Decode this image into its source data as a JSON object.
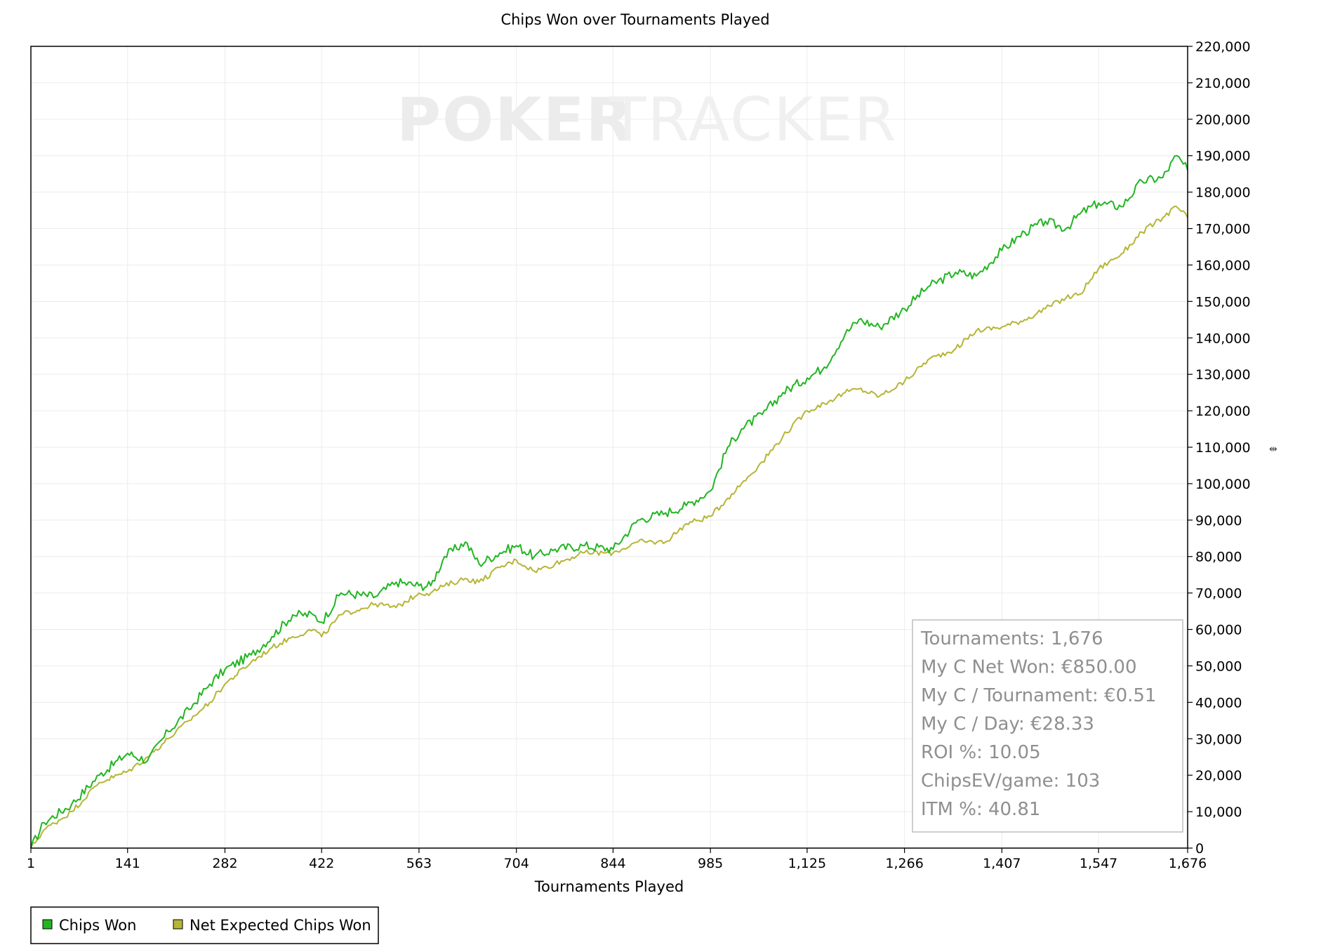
{
  "colors": {
    "chips_won": "#22b522",
    "net_expected": "#b5b536",
    "grid": "#ececec",
    "stats_text": "#8f8f8f"
  },
  "watermark": {
    "bold": "POKER",
    "light": "TRACKER"
  },
  "chart_data": {
    "type": "line",
    "title": "Chips Won over Tournaments Played",
    "xlabel": "Tournaments Played",
    "ylabel": "",
    "xlim": [
      1,
      1676
    ],
    "ylim": [
      0,
      220000
    ],
    "x_ticks": [
      1,
      141,
      282,
      422,
      563,
      704,
      844,
      985,
      1125,
      1266,
      1407,
      1547,
      1676
    ],
    "x_tick_labels": [
      "1",
      "141",
      "282",
      "422",
      "563",
      "704",
      "844",
      "985",
      "1,125",
      "1,266",
      "1,407",
      "1,547",
      "1,676"
    ],
    "y_ticks": [
      0,
      10000,
      20000,
      30000,
      40000,
      50000,
      60000,
      70000,
      80000,
      90000,
      100000,
      110000,
      120000,
      130000,
      140000,
      150000,
      160000,
      170000,
      180000,
      190000,
      200000,
      210000,
      220000
    ],
    "y_tick_labels": [
      "0",
      "10,000",
      "20,000",
      "30,000",
      "40,000",
      "50,000",
      "60,000",
      "70,000",
      "80,000",
      "90,000",
      "100,000",
      "110,000",
      "120,000",
      "130,000",
      "140,000",
      "150,000",
      "160,000",
      "170,000",
      "180,000",
      "190,000",
      "200,000",
      "210,000",
      "220,000"
    ],
    "grid": true,
    "legend_position": "bottom-left",
    "series": [
      {
        "name": "Chips Won",
        "x": [
          1,
          20,
          60,
          100,
          141,
          170,
          200,
          230,
          260,
          282,
          320,
          350,
          380,
          410,
          422,
          450,
          500,
          530,
          563,
          580,
          600,
          630,
          650,
          680,
          704,
          730,
          760,
          800,
          844,
          880,
          920,
          950,
          985,
          1010,
          1030,
          1060,
          1090,
          1125,
          1150,
          1180,
          1200,
          1230,
          1266,
          1300,
          1340,
          1370,
          1407,
          1440,
          1470,
          1500,
          1520,
          1547,
          1580,
          1610,
          1640,
          1660,
          1676
        ],
        "y": [
          0,
          7000,
          12000,
          20000,
          26000,
          24000,
          32000,
          38000,
          45000,
          49000,
          53000,
          58000,
          64000,
          64000,
          62000,
          70000,
          69000,
          73000,
          72000,
          72000,
          80000,
          84000,
          78000,
          81000,
          83000,
          80000,
          82000,
          83000,
          82000,
          90000,
          92000,
          94000,
          98000,
          110000,
          115000,
          119000,
          125000,
          129000,
          132000,
          141000,
          145000,
          143000,
          148000,
          154000,
          158000,
          157000,
          164000,
          169000,
          172000,
          170000,
          174000,
          177000,
          176000,
          183000,
          184000,
          190000,
          186000
        ]
      },
      {
        "name": "Net Expected Chips Won",
        "x": [
          1,
          20,
          60,
          100,
          141,
          170,
          200,
          230,
          260,
          282,
          320,
          350,
          380,
          410,
          422,
          450,
          500,
          530,
          563,
          580,
          600,
          630,
          650,
          680,
          704,
          730,
          760,
          800,
          844,
          880,
          920,
          950,
          985,
          1010,
          1030,
          1060,
          1090,
          1125,
          1150,
          1180,
          1200,
          1230,
          1266,
          1300,
          1340,
          1370,
          1407,
          1440,
          1470,
          1500,
          1520,
          1547,
          1580,
          1610,
          1640,
          1660,
          1676
        ],
        "y": [
          0,
          5000,
          10000,
          18000,
          21000,
          25000,
          30000,
          35000,
          40000,
          45000,
          51000,
          55000,
          58000,
          60000,
          58000,
          64000,
          67000,
          66000,
          70000,
          70000,
          72000,
          74000,
          73000,
          77000,
          79000,
          76000,
          78000,
          81000,
          81000,
          84000,
          84000,
          89000,
          91000,
          96000,
          100000,
          106000,
          113000,
          120000,
          122000,
          125000,
          126000,
          124000,
          128000,
          134000,
          137000,
          142000,
          143000,
          145000,
          148000,
          151000,
          152000,
          159000,
          163000,
          169000,
          173000,
          176000,
          173000
        ]
      }
    ]
  },
  "stats_box": {
    "lines": [
      "Tournaments: 1,676",
      "My C Net Won: €850.00",
      "My C / Tournament: €0.51",
      "My C / Day: €28.33",
      "ROI %: 10.05",
      "ChipsEV/game: 103",
      "ITM %: 40.81"
    ]
  }
}
